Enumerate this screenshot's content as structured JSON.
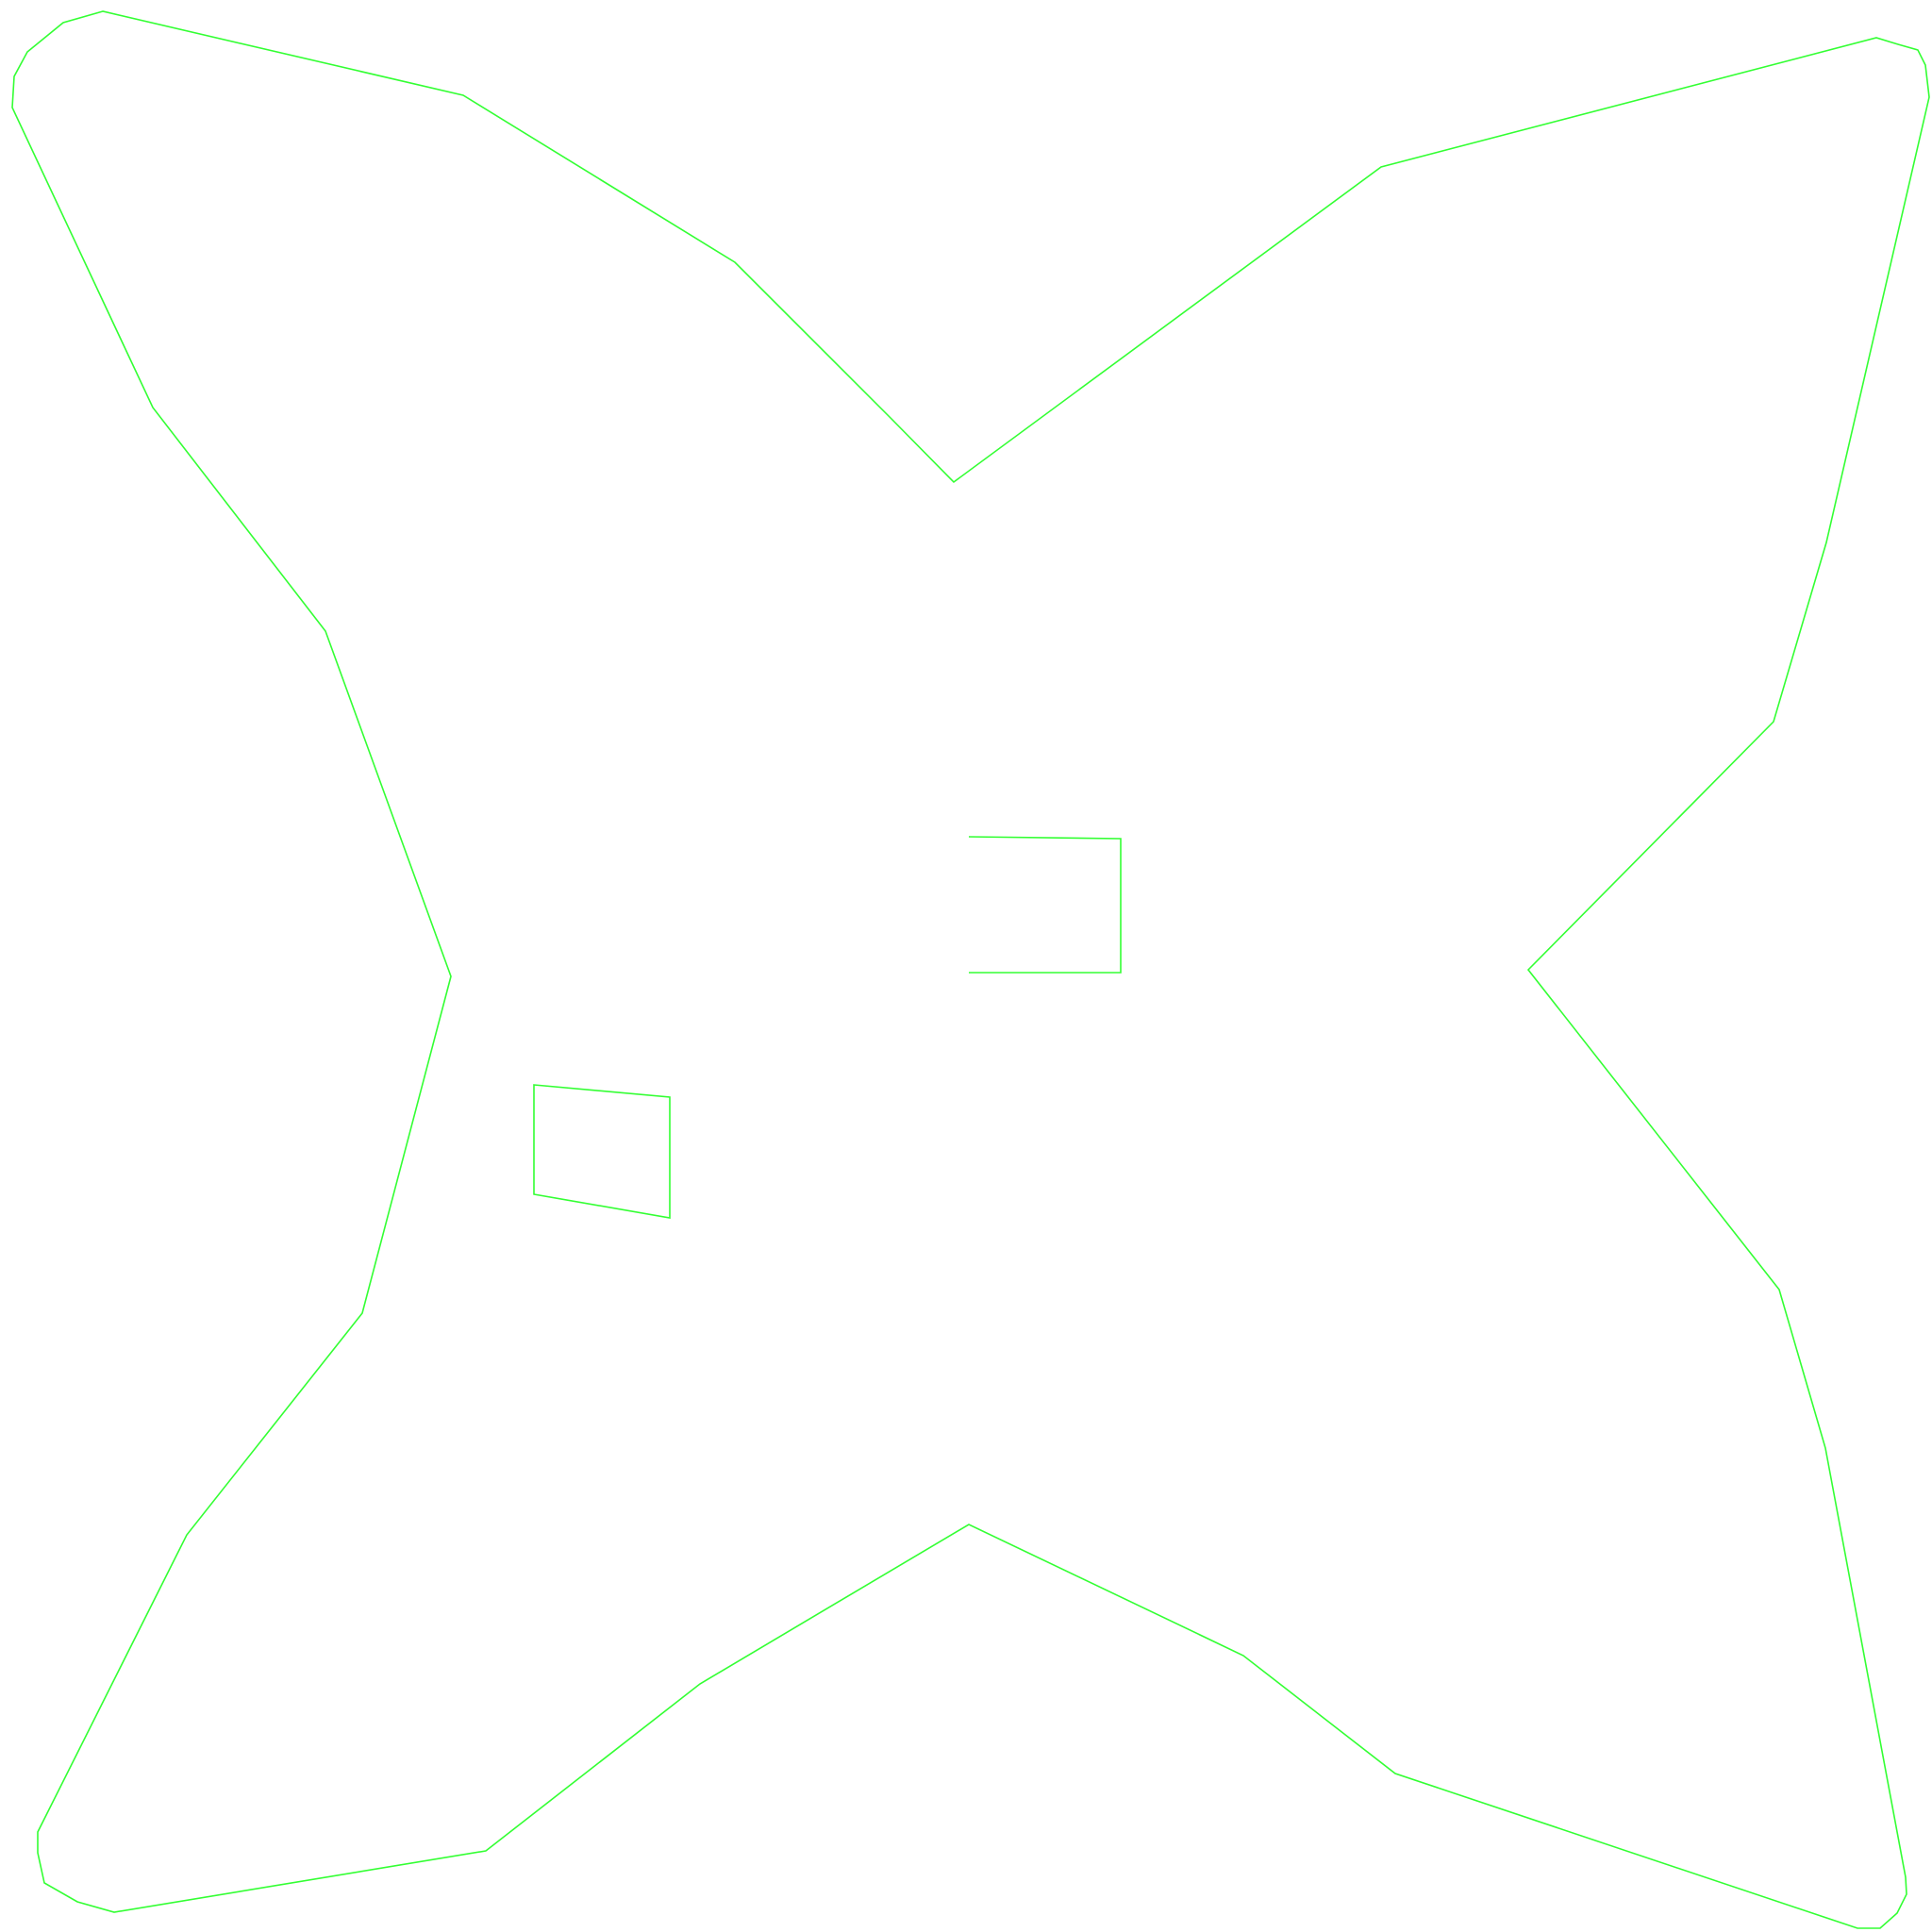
{
  "colors": {
    "background": "#ffffff",
    "stroke": "#33ff33"
  },
  "shapes": [
    {
      "name": "star-outline",
      "kind": "polygon"
    },
    {
      "name": "open-rectangle-outline",
      "kind": "polyline"
    },
    {
      "name": "quadrilateral-outline",
      "kind": "polygon"
    }
  ]
}
